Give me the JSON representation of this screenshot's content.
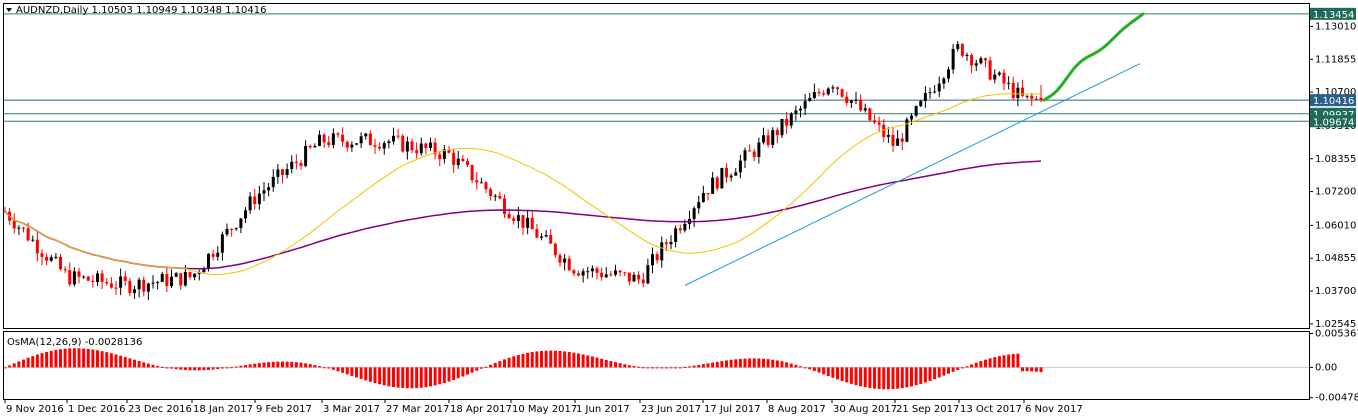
{
  "header": {
    "symbol_line": "AUDNZD,Daily  1.10503 1.10949 1.10348 1.10416",
    "dropdown_icon": "triangle-down-icon"
  },
  "indicator": {
    "title": "OsMA(12,26,9) -0.0028136"
  },
  "colors": {
    "background": "#ffffff",
    "frame": "#000000",
    "bull_candle": "#000000",
    "bear_candle": "#ff0000",
    "ma_fast": "#f2c200",
    "ma_slow": "#800080",
    "trendline": "#1e9bd7",
    "forecast": "#22b022",
    "hline": "#2e7d6f",
    "osma_bar": "#ff0000",
    "label_dark": "#1f6b5a",
    "label_blue": "#2a5f8a"
  },
  "price_axis": {
    "ticks": [
      "1.13010",
      "1.11855",
      "1.10700",
      "1.09510",
      "1.08355",
      "1.07200",
      "1.06010",
      "1.04855",
      "1.03700",
      "1.02545"
    ],
    "labels": [
      {
        "text": "1.13454",
        "style": "dark"
      },
      {
        "text": "1.10416",
        "style": "blue"
      },
      {
        "text": "1.09937",
        "style": "dark"
      },
      {
        "text": "1.09674",
        "style": "dark"
      }
    ]
  },
  "osma_axis": {
    "ticks": [
      "0.005367",
      "0.00",
      "-0.004788"
    ]
  },
  "time_axis": {
    "labels": [
      "9 Nov 2016",
      "1 Dec 2016",
      "23 Dec 2016",
      "18 Jan 2017",
      "9 Feb 2017",
      "3 Mar 2017",
      "27 Mar 2017",
      "18 Apr 2017",
      "10 May 2017",
      "1 Jun 2017",
      "23 Jun 2017",
      "17 Jul 2017",
      "8 Aug 2017",
      "30 Aug 2017",
      "21 Sep 2017",
      "13 Oct 2017",
      "6 Nov 2017"
    ]
  },
  "chart_data": {
    "type": "candlestick",
    "symbol": "AUDNZD",
    "timeframe": "Daily",
    "last_bar": {
      "open": 1.10503,
      "high": 1.10949,
      "low": 1.10348,
      "close": 1.10416
    },
    "ylim": [
      1.024,
      1.138
    ],
    "osma_ylim": [
      -0.005,
      0.0056
    ],
    "horizontal_levels": [
      1.13454,
      1.10416,
      1.09937,
      1.09674
    ],
    "key_points": [
      {
        "date": "9 Nov 2016",
        "price": 1.065
      },
      {
        "date": "1 Dec 2016",
        "price": 1.042
      },
      {
        "date": "23 Dec 2016",
        "price": 1.039
      },
      {
        "date": "18 Jan 2017",
        "price": 1.042
      },
      {
        "date": "9 Feb 2017",
        "price": 1.07
      },
      {
        "date": "3 Mar 2017",
        "price": 1.09
      },
      {
        "date": "27 Mar 2017",
        "price": 1.09
      },
      {
        "date": "18 Apr 2017",
        "price": 1.085
      },
      {
        "date": "10 May 2017",
        "price": 1.065
      },
      {
        "date": "1 Jun 2017",
        "price": 1.045
      },
      {
        "date": "23 Jun 2017",
        "price": 1.041
      },
      {
        "date": "17 Jul 2017",
        "price": 1.072
      },
      {
        "date": "8 Aug 2017",
        "price": 1.09
      },
      {
        "date": "30 Aug 2017",
        "price": 1.111
      },
      {
        "date": "21 Sep 2017",
        "price": 1.088
      },
      {
        "date": "13 Oct 2017",
        "price": 1.123
      },
      {
        "date": "6 Nov 2017",
        "price": 1.1042
      }
    ],
    "trendline": {
      "start": {
        "date": "23 Jun 2017",
        "price": 1.039
      },
      "end": {
        "date": "after 6 Nov 2017",
        "price": 1.117
      }
    },
    "forecast_path": [
      {
        "date": "6 Nov 2017",
        "price": 1.1042
      },
      {
        "date": "after 6 Nov 2017",
        "price": 1.1345
      }
    ],
    "osma_shape": "oscillating histogram, last value -0.0028136"
  }
}
